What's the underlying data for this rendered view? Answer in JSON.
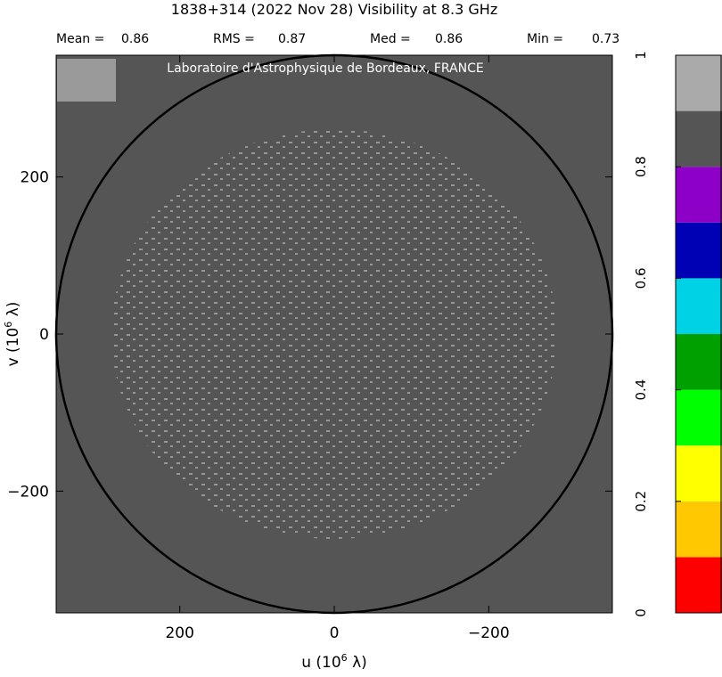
{
  "chart_data": {
    "type": "heatmap",
    "title": "1838+314  (2022 Nov 28)   Visibility at  8.3 GHz",
    "stats": [
      {
        "label": "Mean =",
        "value": 0.86
      },
      {
        "label": "RMS =",
        "value": 0.87
      },
      {
        "label": "Med =",
        "value": 0.86
      },
      {
        "label": "Min =",
        "value": 0.73
      }
    ],
    "watermark": "Laboratoire d'Astrophysique de Bordeaux, FRANCE",
    "x_label": {
      "text": "u  (10",
      "sup": "6",
      "tail": " λ)"
    },
    "y_label": {
      "text": "v  (10",
      "sup": "6",
      "tail": " λ)"
    },
    "xlim": [
      360,
      -360
    ],
    "ylim": [
      355,
      -355
    ],
    "xticks": [
      200,
      0,
      {
        "value": -200,
        "label": "−200"
      }
    ],
    "yticks": [
      200,
      0,
      {
        "value": -200,
        "label": "−200"
      }
    ],
    "colorbar": {
      "lim": [
        0,
        1
      ],
      "bins": [
        0,
        0.1,
        0.2,
        0.3,
        0.4,
        0.5,
        0.6,
        0.7,
        0.8,
        0.9,
        1
      ],
      "colors": [
        "#ff0000",
        "#ffc800",
        "#ffff00",
        "#00ff00",
        "#00a000",
        "#00d2e6",
        "#0000b4",
        "#8c00c8",
        "#555555",
        "#aaaaaa"
      ],
      "ticks": [
        0,
        0.2,
        0.4,
        0.6,
        0.8,
        1
      ]
    }
  }
}
